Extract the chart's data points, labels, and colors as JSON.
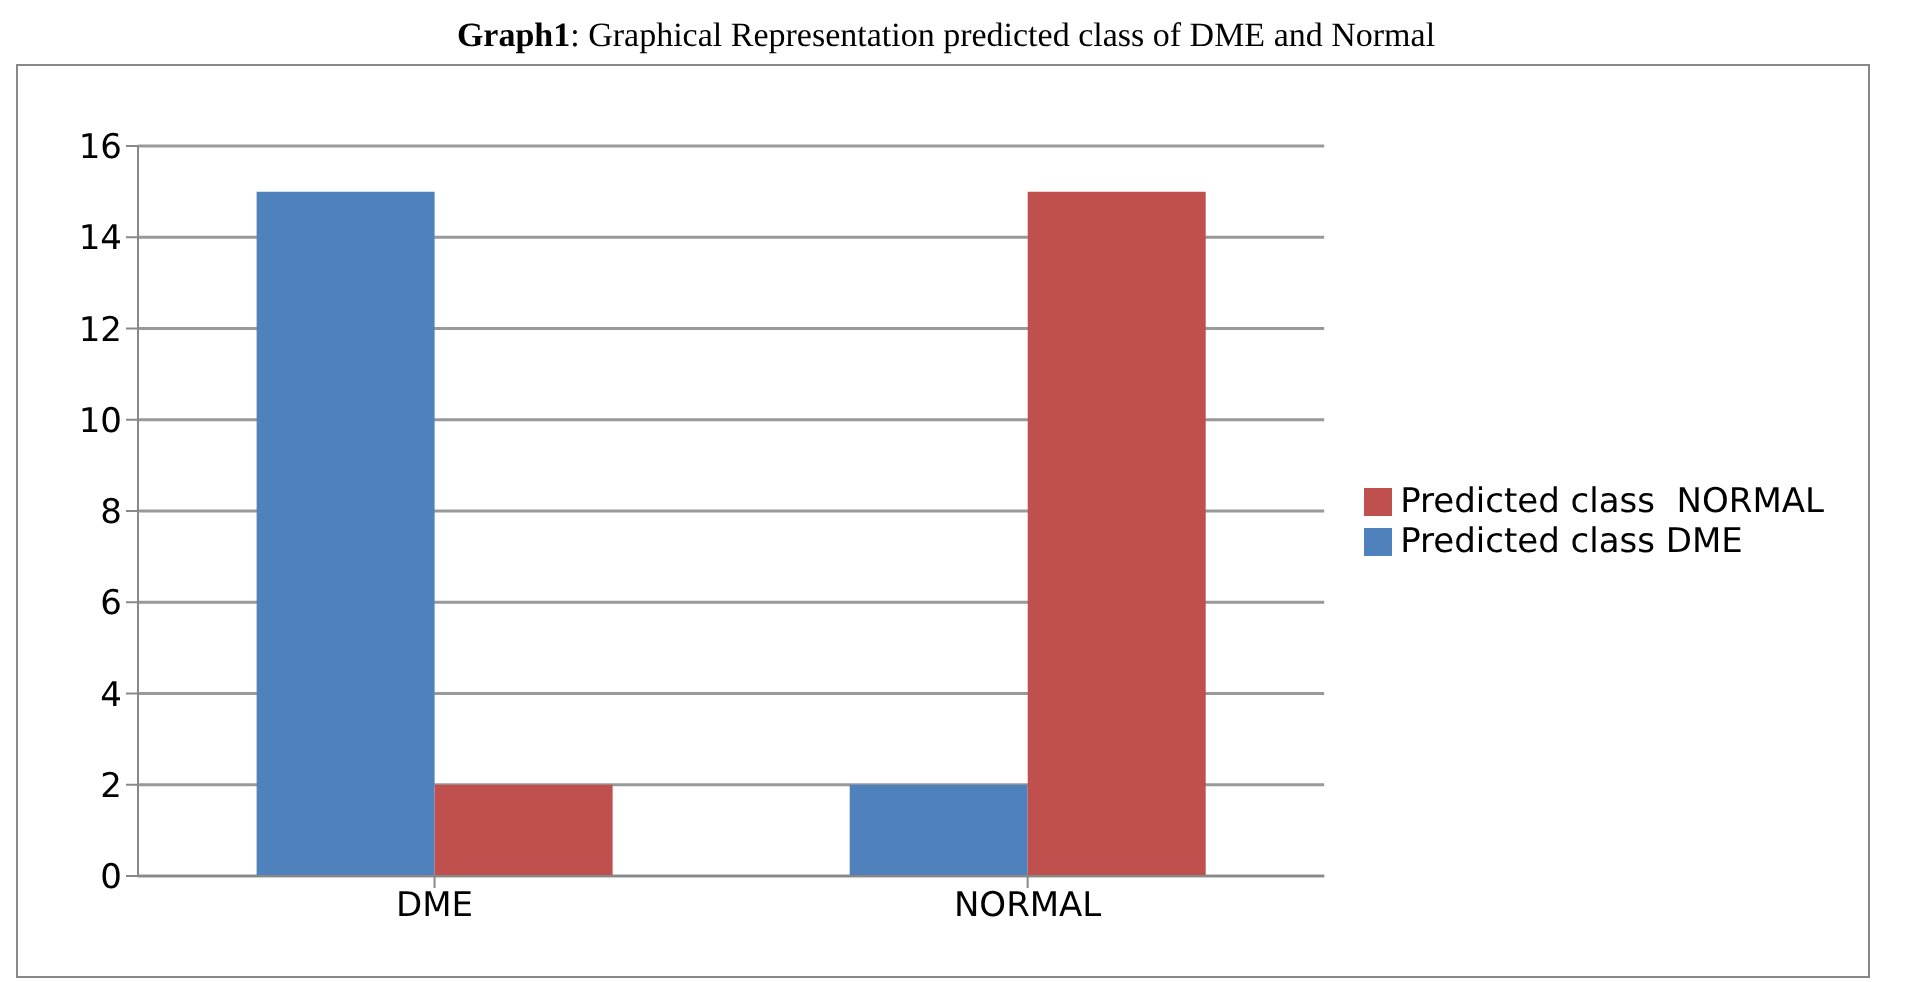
{
  "chart_data": {
    "type": "bar",
    "title": "Graph1: Graphical Representation predicted class of DME and Normal",
    "categories": [
      "DME",
      "NORMAL"
    ],
    "series": [
      {
        "name": "Predicted class DME",
        "color": "#4f81bd",
        "values": [
          15,
          2
        ]
      },
      {
        "name": "Predicted class  NORMAL",
        "color": "#c0504d",
        "values": [
          2,
          15
        ]
      }
    ],
    "ylim": [
      0,
      16
    ],
    "yticks": [
      0,
      2,
      4,
      6,
      8,
      10,
      12,
      14,
      16
    ],
    "grid": "y",
    "legend": "right"
  }
}
